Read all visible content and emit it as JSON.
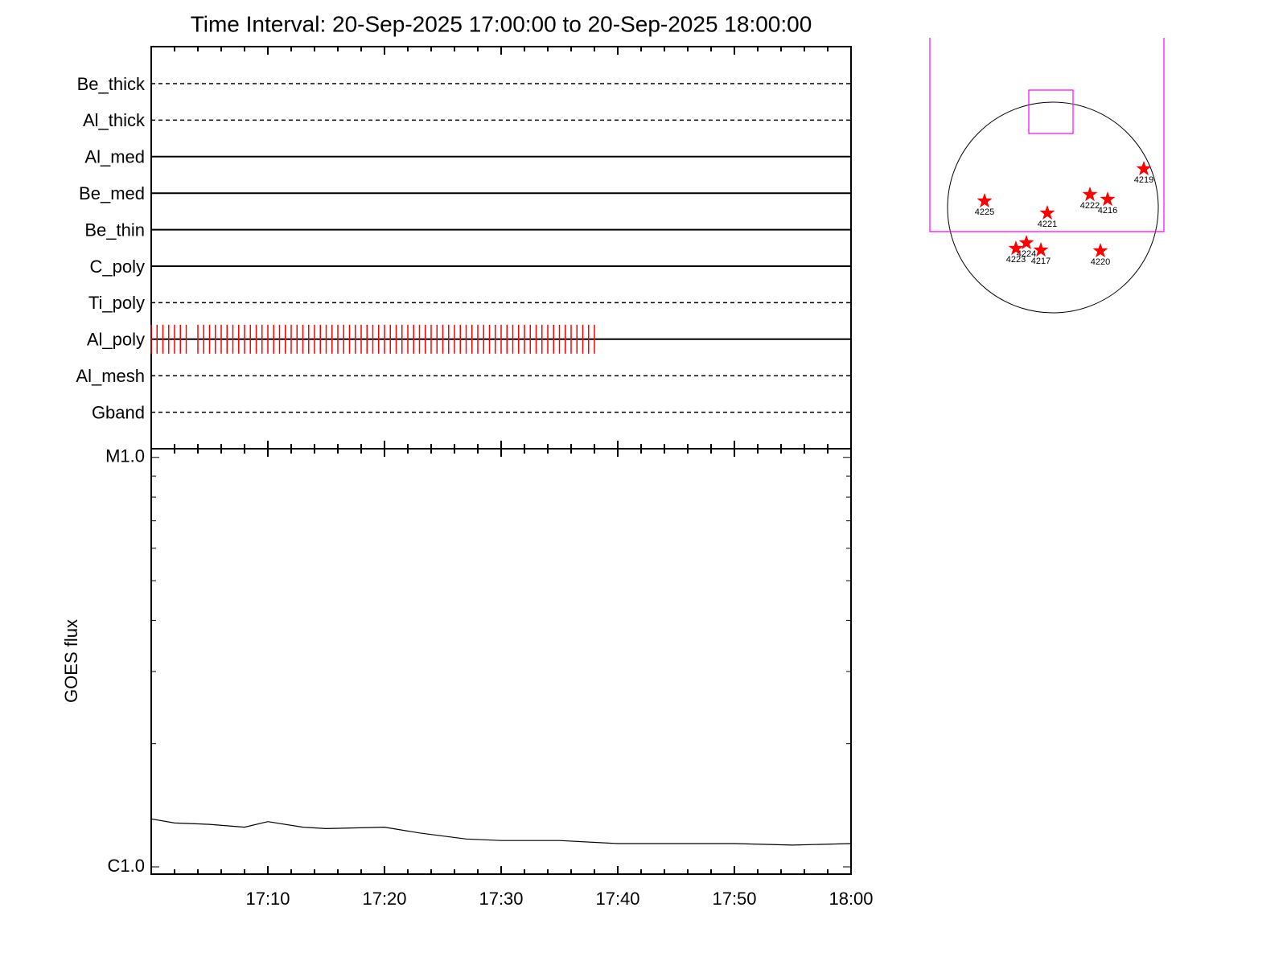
{
  "chart_data": [
    {
      "type": "timeline",
      "title": "Time Interval: 20-Sep-2025 17:00:00 to 20-Sep-2025 18:00:00",
      "categories": [
        "Be_thick",
        "Al_thick",
        "Al_med",
        "Be_med",
        "Be_thin",
        "C_poly",
        "Ti_poly",
        "Al_poly",
        "Al_mesh",
        "Gband"
      ],
      "line_styles": [
        "dashed",
        "dashed",
        "solid",
        "solid",
        "solid",
        "solid",
        "dashed",
        "solid",
        "dashed",
        "dashed"
      ],
      "events": [
        [],
        [],
        [],
        [],
        [],
        [],
        [],
        [
          0,
          0.5,
          1,
          1.5,
          2,
          2.5,
          3,
          4,
          4.5,
          5,
          5.5,
          6,
          6.5,
          7,
          7.5,
          8,
          8.5,
          9,
          9.5,
          10,
          10.5,
          11,
          11.5,
          12,
          12.5,
          13,
          13.5,
          14,
          14.5,
          15,
          15.5,
          16,
          16.5,
          17,
          17.5,
          18,
          18.5,
          19,
          19.5,
          20,
          20.5,
          21,
          21.5,
          22,
          22.5,
          23,
          23.5,
          24,
          24.5,
          25,
          25.5,
          26,
          26.5,
          27,
          27.5,
          28,
          28.5,
          29,
          29.5,
          30,
          30.5,
          31,
          31.5,
          32,
          32.5,
          33,
          33.5,
          34,
          34.5,
          35,
          35.5,
          36,
          36.5,
          37,
          37.5,
          38
        ],
        [],
        []
      ],
      "event_color": "#ff0000",
      "xlim": [
        0,
        60
      ],
      "xticks": [
        10,
        20,
        30,
        40,
        50,
        60
      ],
      "minor_xticks": [
        2,
        4,
        6,
        8,
        12,
        14,
        16,
        18,
        22,
        24,
        26,
        28,
        32,
        34,
        36,
        38,
        42,
        44,
        46,
        48,
        52,
        54,
        56,
        58
      ]
    },
    {
      "type": "line",
      "y_label": "GOES flux",
      "x": [
        0,
        2,
        5,
        8,
        10,
        13,
        15,
        20,
        23,
        27,
        30,
        35,
        40,
        45,
        50,
        55,
        60
      ],
      "values": [
        1.31e-06,
        1.28e-06,
        1.27e-06,
        1.25e-06,
        1.29e-06,
        1.25e-06,
        1.24e-06,
        1.25e-06,
        1.21e-06,
        1.17e-06,
        1.16e-06,
        1.16e-06,
        1.14e-06,
        1.14e-06,
        1.14e-06,
        1.13e-06,
        1.14e-06
      ],
      "color": "#000000",
      "y_scale": "log",
      "xlim": [
        0,
        60
      ],
      "ylim": [
        9.6e-07,
        1.05e-05
      ],
      "yticks": [
        {
          "value": 1e-06,
          "label": "C1.0"
        },
        {
          "value": 1e-05,
          "label": "M1.0"
        }
      ],
      "minor_yticks": [
        2e-06,
        3e-06,
        4e-06,
        5e-06,
        6e-06,
        7e-06,
        8e-06,
        9e-06
      ],
      "xticks": [
        {
          "value": 10,
          "label": "17:10"
        },
        {
          "value": 20,
          "label": "17:20"
        },
        {
          "value": 30,
          "label": "17:30"
        },
        {
          "value": 40,
          "label": "17:40"
        },
        {
          "value": 50,
          "label": "17:50"
        },
        {
          "value": 60,
          "label": "18:00"
        }
      ],
      "minor_xticks": [
        2,
        4,
        6,
        8,
        12,
        14,
        16,
        18,
        22,
        24,
        26,
        28,
        32,
        34,
        36,
        38,
        42,
        44,
        46,
        48,
        52,
        54,
        56,
        58
      ]
    },
    {
      "type": "disk",
      "regions": [
        "4225",
        "4221",
        "4222",
        "4216",
        "4219",
        "4224",
        "4223",
        "4217",
        "4220"
      ],
      "color": "#ff0000",
      "fov_color": "#ff00ff"
    }
  ]
}
